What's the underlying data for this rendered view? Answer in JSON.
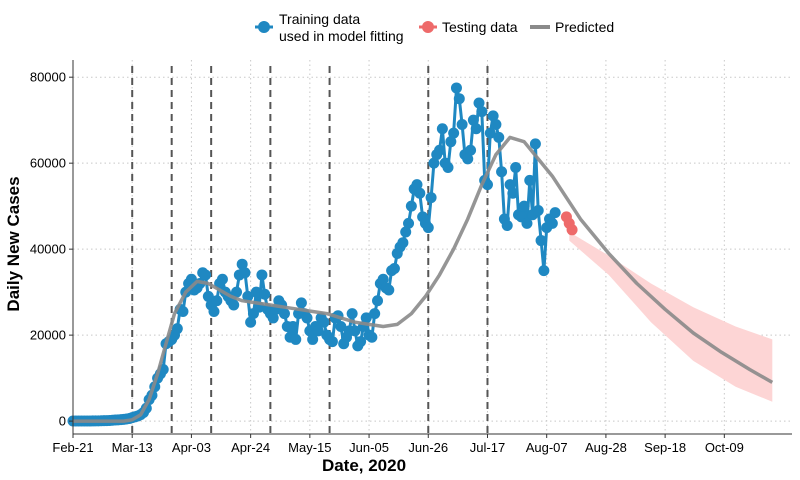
{
  "chart_data": {
    "type": "line",
    "xlabel": "Date, 2020",
    "ylabel": "Daily New Cases",
    "x_ticks": [
      "Feb-21",
      "Mar-13",
      "Apr-03",
      "Apr-24",
      "May-15",
      "Jun-05",
      "Jun-26",
      "Jul-17",
      "Aug-07",
      "Aug-28",
      "Sep-18",
      "Oct-09"
    ],
    "y_ticks": [
      "0",
      "20000",
      "40000",
      "60000",
      "80000"
    ],
    "ylim": [
      -3000,
      84000
    ],
    "x_range_days_from_feb21": [
      0,
      255
    ],
    "grid": "dotted",
    "legend_position": "top",
    "legend": {
      "training": "Training data",
      "training_line2": "used in model fitting",
      "testing": "Testing data",
      "predicted": "Predicted"
    },
    "vertical_dashed_lines_day": [
      21,
      35,
      49,
      70,
      91,
      126,
      147
    ],
    "colors": {
      "training": "#1f88c2",
      "testing": "#ee6a6a",
      "predicted": "#8a8a8a",
      "band": "#fdd5d5"
    },
    "training": {
      "start_day": 0,
      "values": [
        20,
        20,
        20,
        20,
        20,
        20,
        30,
        40,
        50,
        60,
        80,
        100,
        120,
        150,
        200,
        250,
        300,
        350,
        400,
        500,
        600,
        800,
        1000,
        1200,
        1500,
        2000,
        3000,
        5000,
        6000,
        8000,
        10000,
        11000,
        12000,
        18000,
        18500,
        19000,
        20000,
        21500,
        26000,
        25500,
        30000,
        32000,
        33000,
        30500,
        31000,
        32000,
        34500,
        34000,
        29000,
        27000,
        25500,
        28000,
        32000,
        33000,
        30000,
        29000,
        28000,
        27000,
        30000,
        34000,
        36500,
        34500,
        29000,
        23000,
        25000,
        30000,
        26500,
        34000,
        29500,
        26000,
        25000,
        24000,
        26000,
        28000,
        27000,
        25000,
        22000,
        19500,
        22000,
        19000,
        25000,
        27500,
        25000,
        24000,
        21000,
        19000,
        22000,
        21000,
        24000,
        23000,
        20000,
        19000,
        18500,
        24000,
        24500,
        22000,
        18000,
        19500,
        21000,
        25000,
        21000,
        17500,
        18500,
        22000,
        24000,
        20000,
        19500,
        25000,
        28000,
        32000,
        33000,
        31000,
        30500,
        35000,
        35500,
        39000,
        40500,
        41500,
        44000,
        46000,
        50000,
        54000,
        55000,
        53000,
        47500,
        46000,
        45000,
        52000,
        60000,
        62000,
        63000,
        68000,
        60000,
        59000,
        65000,
        67000,
        77500,
        75000,
        69000,
        62000,
        61000,
        63000,
        70000,
        68000,
        74000,
        72000,
        56000,
        55000,
        67000,
        71000,
        69000,
        66000,
        58000,
        47000,
        45500,
        55000,
        53000,
        59000,
        48000,
        47500,
        50000,
        46000,
        56000,
        48000,
        64500,
        49000,
        42000,
        35000,
        45000,
        47000,
        46000,
        48500
      ]
    },
    "testing": {
      "start_day": 175,
      "values": [
        47500,
        46000,
        44500
      ]
    },
    "predicted": {
      "days": [
        0,
        10,
        18,
        21,
        24,
        27,
        30,
        33,
        36,
        40,
        44,
        48,
        52,
        56,
        60,
        65,
        70,
        75,
        80,
        85,
        90,
        95,
        100,
        105,
        110,
        115,
        120,
        125,
        130,
        135,
        140,
        145,
        150,
        155,
        160,
        165,
        170,
        175,
        180,
        190,
        200,
        210,
        220,
        230,
        240,
        248
      ],
      "values": [
        0,
        0,
        0,
        300,
        1500,
        5000,
        11000,
        18000,
        25000,
        30000,
        32500,
        32000,
        30500,
        29000,
        28000,
        27500,
        27000,
        26500,
        26000,
        25500,
        25000,
        24000,
        23000,
        22500,
        22000,
        22500,
        25000,
        29000,
        34000,
        40000,
        47000,
        55000,
        62000,
        66000,
        65000,
        61000,
        57000,
        52000,
        47000,
        39000,
        32000,
        26000,
        20500,
        16000,
        12000,
        9000
      ]
    },
    "prediction_band": {
      "days": [
        176,
        190,
        205,
        220,
        235,
        248
      ],
      "upper": [
        44000,
        38500,
        32000,
        26500,
        22000,
        19000
      ],
      "lower": [
        42000,
        34000,
        23000,
        14000,
        8000,
        4500
      ]
    }
  }
}
